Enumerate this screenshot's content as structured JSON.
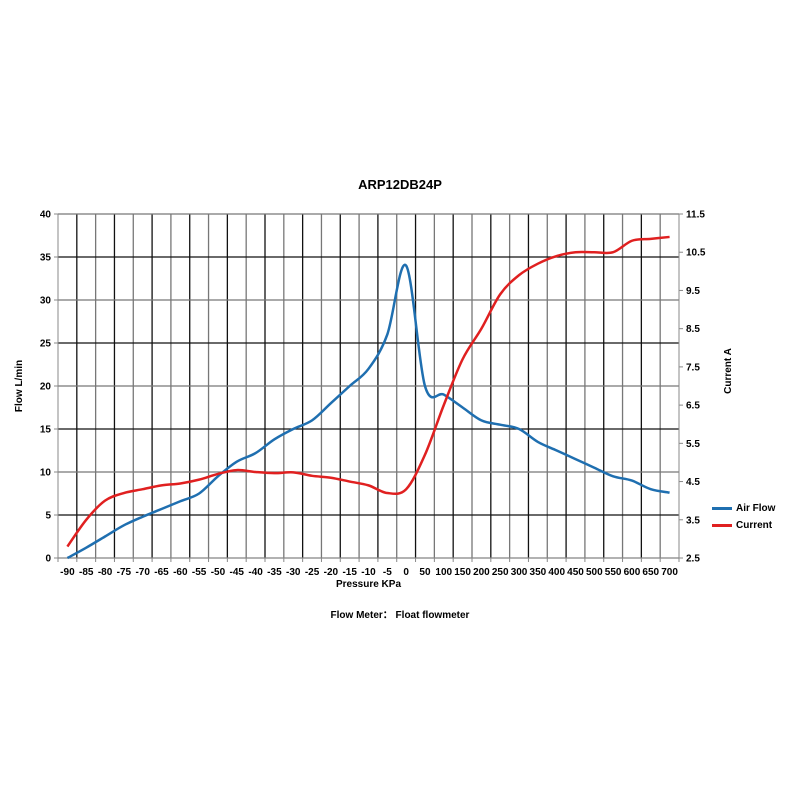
{
  "chart_data": {
    "type": "line",
    "title": "ARP12DB24P",
    "subtitle": "Flow Meter： Float flowmeter",
    "xlabel": "Pressure KPa",
    "ylabel": "Flow  L/min",
    "y2label": "Current  A",
    "categories": [
      "-90",
      "-85",
      "-80",
      "-75",
      "-70",
      "-65",
      "-60",
      "-55",
      "-50",
      "-45",
      "-40",
      "-35",
      "-30",
      "-25",
      "-20",
      "-15",
      "-10",
      "-5",
      "0",
      "50",
      "100",
      "150",
      "200",
      "250",
      "300",
      "350",
      "400",
      "450",
      "500",
      "550",
      "600",
      "650",
      "700"
    ],
    "ylim": [
      0,
      40
    ],
    "yticks": [
      "0",
      "5",
      "10",
      "15",
      "20",
      "25",
      "30",
      "35",
      "40"
    ],
    "y2lim": [
      2.5,
      11.5
    ],
    "y2ticks": [
      "2.5",
      "3.5",
      "4.5",
      "5.5",
      "6.5",
      "7.5",
      "8.5",
      "9.5",
      "10.5",
      "11.5"
    ],
    "grid": true,
    "legend_position": "right",
    "series": [
      {
        "name": "Air Flow",
        "axis": "left",
        "color": "#1f6fb0",
        "values": [
          0,
          1.2,
          2.5,
          3.8,
          4.8,
          5.7,
          6.6,
          7.5,
          9.5,
          11.2,
          12.2,
          13.8,
          15,
          16,
          18,
          20,
          22,
          26,
          34,
          20,
          19,
          17.5,
          16,
          15.5,
          15,
          13.5,
          12.5,
          11.5,
          10.5,
          9.5,
          9,
          8,
          7.6
        ]
      },
      {
        "name": "Current",
        "axis": "right",
        "color": "#e02020",
        "values": [
          2.8,
          3.5,
          4.0,
          4.2,
          4.3,
          4.4,
          4.45,
          4.55,
          4.7,
          4.8,
          4.75,
          4.72,
          4.74,
          4.65,
          4.6,
          4.5,
          4.4,
          4.2,
          4.3,
          5.2,
          6.5,
          7.7,
          8.5,
          9.4,
          9.9,
          10.2,
          10.4,
          10.5,
          10.5,
          10.5,
          10.8,
          10.85,
          10.9
        ]
      }
    ]
  },
  "legend": {
    "items": [
      {
        "label": "Air Flow",
        "color": "#1f6fb0"
      },
      {
        "label": "Current",
        "color": "#e02020"
      }
    ]
  }
}
